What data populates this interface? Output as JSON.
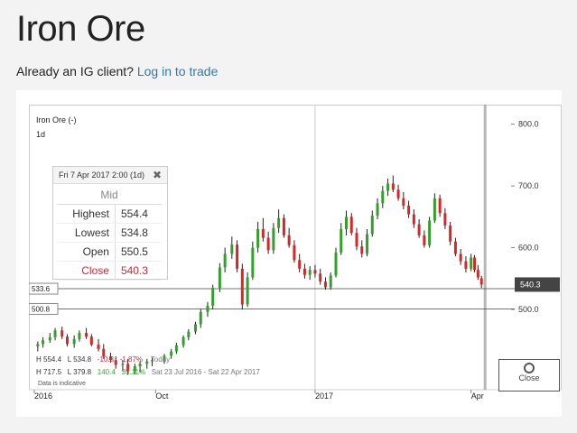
{
  "page": {
    "title": "Iron Ore",
    "client_prompt": "Already an IG client?",
    "login_link": "Log in to trade"
  },
  "chart_header": {
    "instrument": "Iron Ore (-)",
    "interval": "1d"
  },
  "tooltip": {
    "header": "Fri 7 Apr 2017 2:00 (1d)",
    "column": "Mid",
    "rows": [
      {
        "label": "Highest",
        "value": "554.4"
      },
      {
        "label": "Lowest",
        "value": "534.8"
      },
      {
        "label": "Open",
        "value": "550.5"
      },
      {
        "label": "Close",
        "value": "540.3"
      }
    ]
  },
  "stats": {
    "h1": "H 554.4",
    "l1": "L 534.8",
    "chg1": "-10.3",
    "pct1": "-1.87%",
    "period1": "Today",
    "h2": "H 717.5",
    "l2": "L 379.8",
    "chg2": "140.4",
    "pct2": "35.11%",
    "period2": "Sat 23 Jul 2016 - Sat 22 Apr 2017",
    "indicative": "Data is indicative"
  },
  "reset_button": {
    "label": "Close"
  },
  "colors": {
    "up": "#33a02c",
    "down": "#d62728",
    "neutral": "#222222",
    "last": "#444444"
  },
  "chart_data": {
    "type": "candlestick",
    "y_ticks": [
      "800.0",
      "700.0",
      "600.0",
      "500.0"
    ],
    "y_tick_values": [
      800,
      700,
      600,
      500
    ],
    "ylim": [
      370,
      820
    ],
    "x_labels": [
      "2016",
      "Oct",
      "2017",
      "Apr"
    ],
    "x_label_dates": [
      "2016-07-23",
      "2016-10-01",
      "2017-01-01",
      "2017-04-01"
    ],
    "xlim": [
      "2016-07-23",
      "2017-04-22"
    ],
    "h_lines": [
      {
        "value": 533.6,
        "label": "533.6"
      },
      {
        "value": 500.8,
        "label": "500.8"
      }
    ],
    "last_price": {
      "value": 540.3,
      "label": "540.3"
    },
    "series": [
      {
        "date": "2016-07-25",
        "o": 440,
        "h": 448,
        "l": 432,
        "c": 444
      },
      {
        "date": "2016-07-28",
        "o": 444,
        "h": 455,
        "l": 438,
        "c": 450
      },
      {
        "date": "2016-08-01",
        "o": 450,
        "h": 462,
        "l": 446,
        "c": 455
      },
      {
        "date": "2016-08-04",
        "o": 455,
        "h": 470,
        "l": 450,
        "c": 466
      },
      {
        "date": "2016-08-08",
        "o": 466,
        "h": 472,
        "l": 452,
        "c": 456
      },
      {
        "date": "2016-08-11",
        "o": 456,
        "h": 460,
        "l": 440,
        "c": 444
      },
      {
        "date": "2016-08-15",
        "o": 444,
        "h": 458,
        "l": 438,
        "c": 452
      },
      {
        "date": "2016-08-18",
        "o": 452,
        "h": 466,
        "l": 448,
        "c": 462
      },
      {
        "date": "2016-08-22",
        "o": 462,
        "h": 470,
        "l": 452,
        "c": 456
      },
      {
        "date": "2016-08-25",
        "o": 456,
        "h": 460,
        "l": 440,
        "c": 443
      },
      {
        "date": "2016-08-29",
        "o": 443,
        "h": 452,
        "l": 432,
        "c": 436
      },
      {
        "date": "2016-09-01",
        "o": 436,
        "h": 444,
        "l": 420,
        "c": 424
      },
      {
        "date": "2016-09-05",
        "o": 424,
        "h": 430,
        "l": 414,
        "c": 418
      },
      {
        "date": "2016-09-08",
        "o": 418,
        "h": 424,
        "l": 404,
        "c": 410
      },
      {
        "date": "2016-09-12",
        "o": 410,
        "h": 418,
        "l": 400,
        "c": 412
      },
      {
        "date": "2016-09-15",
        "o": 412,
        "h": 420,
        "l": 394,
        "c": 400
      },
      {
        "date": "2016-09-19",
        "o": 400,
        "h": 412,
        "l": 395,
        "c": 408
      },
      {
        "date": "2016-09-22",
        "o": 408,
        "h": 416,
        "l": 398,
        "c": 412
      },
      {
        "date": "2016-09-26",
        "o": 412,
        "h": 420,
        "l": 404,
        "c": 416
      },
      {
        "date": "2016-09-29",
        "o": 416,
        "h": 422,
        "l": 408,
        "c": 418
      },
      {
        "date": "2016-10-06",
        "o": 418,
        "h": 428,
        "l": 412,
        "c": 425
      },
      {
        "date": "2016-10-10",
        "o": 425,
        "h": 436,
        "l": 420,
        "c": 432
      },
      {
        "date": "2016-10-13",
        "o": 432,
        "h": 446,
        "l": 428,
        "c": 442
      },
      {
        "date": "2016-10-17",
        "o": 442,
        "h": 458,
        "l": 438,
        "c": 455
      },
      {
        "date": "2016-10-20",
        "o": 455,
        "h": 468,
        "l": 450,
        "c": 464
      },
      {
        "date": "2016-10-24",
        "o": 464,
        "h": 480,
        "l": 460,
        "c": 476
      },
      {
        "date": "2016-10-27",
        "o": 476,
        "h": 500,
        "l": 470,
        "c": 496
      },
      {
        "date": "2016-10-31",
        "o": 496,
        "h": 512,
        "l": 488,
        "c": 506
      },
      {
        "date": "2016-11-03",
        "o": 506,
        "h": 540,
        "l": 500,
        "c": 535
      },
      {
        "date": "2016-11-07",
        "o": 535,
        "h": 575,
        "l": 528,
        "c": 568
      },
      {
        "date": "2016-11-10",
        "o": 568,
        "h": 600,
        "l": 560,
        "c": 590
      },
      {
        "date": "2016-11-14",
        "o": 590,
        "h": 618,
        "l": 582,
        "c": 605
      },
      {
        "date": "2016-11-17",
        "o": 605,
        "h": 612,
        "l": 560,
        "c": 566
      },
      {
        "date": "2016-11-20",
        "o": 566,
        "h": 574,
        "l": 500,
        "c": 508
      },
      {
        "date": "2016-11-23",
        "o": 508,
        "h": 560,
        "l": 504,
        "c": 552
      },
      {
        "date": "2016-11-26",
        "o": 552,
        "h": 610,
        "l": 548,
        "c": 600
      },
      {
        "date": "2016-11-29",
        "o": 600,
        "h": 642,
        "l": 592,
        "c": 630
      },
      {
        "date": "2016-12-02",
        "o": 630,
        "h": 648,
        "l": 610,
        "c": 616
      },
      {
        "date": "2016-12-05",
        "o": 616,
        "h": 626,
        "l": 590,
        "c": 596
      },
      {
        "date": "2016-12-08",
        "o": 596,
        "h": 640,
        "l": 590,
        "c": 632
      },
      {
        "date": "2016-12-11",
        "o": 632,
        "h": 662,
        "l": 624,
        "c": 648
      },
      {
        "date": "2016-12-14",
        "o": 648,
        "h": 654,
        "l": 616,
        "c": 620
      },
      {
        "date": "2016-12-17",
        "o": 620,
        "h": 632,
        "l": 600,
        "c": 604
      },
      {
        "date": "2016-12-20",
        "o": 604,
        "h": 612,
        "l": 576,
        "c": 580
      },
      {
        "date": "2016-12-23",
        "o": 580,
        "h": 590,
        "l": 560,
        "c": 566
      },
      {
        "date": "2016-12-26",
        "o": 566,
        "h": 574,
        "l": 550,
        "c": 556
      },
      {
        "date": "2016-12-29",
        "o": 556,
        "h": 570,
        "l": 548,
        "c": 564
      },
      {
        "date": "2017-01-01",
        "o": 564,
        "h": 572,
        "l": 552,
        "c": 558
      },
      {
        "date": "2017-01-04",
        "o": 558,
        "h": 566,
        "l": 540,
        "c": 545
      },
      {
        "date": "2017-01-07",
        "o": 545,
        "h": 552,
        "l": 532,
        "c": 536
      },
      {
        "date": "2017-01-10",
        "o": 536,
        "h": 560,
        "l": 532,
        "c": 555
      },
      {
        "date": "2017-01-13",
        "o": 555,
        "h": 600,
        "l": 552,
        "c": 592
      },
      {
        "date": "2017-01-16",
        "o": 592,
        "h": 640,
        "l": 588,
        "c": 630
      },
      {
        "date": "2017-01-19",
        "o": 630,
        "h": 660,
        "l": 620,
        "c": 650
      },
      {
        "date": "2017-01-22",
        "o": 650,
        "h": 656,
        "l": 620,
        "c": 624
      },
      {
        "date": "2017-01-25",
        "o": 624,
        "h": 632,
        "l": 596,
        "c": 602
      },
      {
        "date": "2017-01-28",
        "o": 602,
        "h": 612,
        "l": 584,
        "c": 590
      },
      {
        "date": "2017-01-31",
        "o": 590,
        "h": 630,
        "l": 586,
        "c": 622
      },
      {
        "date": "2017-02-03",
        "o": 622,
        "h": 660,
        "l": 618,
        "c": 652
      },
      {
        "date": "2017-02-06",
        "o": 652,
        "h": 680,
        "l": 646,
        "c": 672
      },
      {
        "date": "2017-02-09",
        "o": 672,
        "h": 700,
        "l": 664,
        "c": 692
      },
      {
        "date": "2017-02-12",
        "o": 692,
        "h": 712,
        "l": 684,
        "c": 704
      },
      {
        "date": "2017-02-15",
        "o": 704,
        "h": 717,
        "l": 690,
        "c": 694
      },
      {
        "date": "2017-02-18",
        "o": 694,
        "h": 702,
        "l": 676,
        "c": 680
      },
      {
        "date": "2017-02-21",
        "o": 680,
        "h": 690,
        "l": 662,
        "c": 668
      },
      {
        "date": "2017-02-24",
        "o": 668,
        "h": 676,
        "l": 648,
        "c": 654
      },
      {
        "date": "2017-02-27",
        "o": 654,
        "h": 662,
        "l": 632,
        "c": 638
      },
      {
        "date": "2017-03-02",
        "o": 638,
        "h": 646,
        "l": 616,
        "c": 620
      },
      {
        "date": "2017-03-05",
        "o": 620,
        "h": 628,
        "l": 600,
        "c": 604
      },
      {
        "date": "2017-03-08",
        "o": 604,
        "h": 650,
        "l": 600,
        "c": 644
      },
      {
        "date": "2017-03-11",
        "o": 644,
        "h": 688,
        "l": 640,
        "c": 680
      },
      {
        "date": "2017-03-14",
        "o": 680,
        "h": 686,
        "l": 650,
        "c": 656
      },
      {
        "date": "2017-03-17",
        "o": 656,
        "h": 664,
        "l": 630,
        "c": 636
      },
      {
        "date": "2017-03-20",
        "o": 636,
        "h": 642,
        "l": 604,
        "c": 610
      },
      {
        "date": "2017-03-23",
        "o": 610,
        "h": 616,
        "l": 586,
        "c": 590
      },
      {
        "date": "2017-03-26",
        "o": 590,
        "h": 598,
        "l": 572,
        "c": 578
      },
      {
        "date": "2017-03-29",
        "o": 578,
        "h": 586,
        "l": 560,
        "c": 566
      },
      {
        "date": "2017-04-01",
        "o": 566,
        "h": 590,
        "l": 562,
        "c": 584
      },
      {
        "date": "2017-04-03",
        "o": 584,
        "h": 588,
        "l": 560,
        "c": 564
      },
      {
        "date": "2017-04-05",
        "o": 564,
        "h": 572,
        "l": 548,
        "c": 552
      },
      {
        "date": "2017-04-07",
        "o": 550.5,
        "h": 554.4,
        "l": 534.8,
        "c": 540.3
      }
    ]
  }
}
